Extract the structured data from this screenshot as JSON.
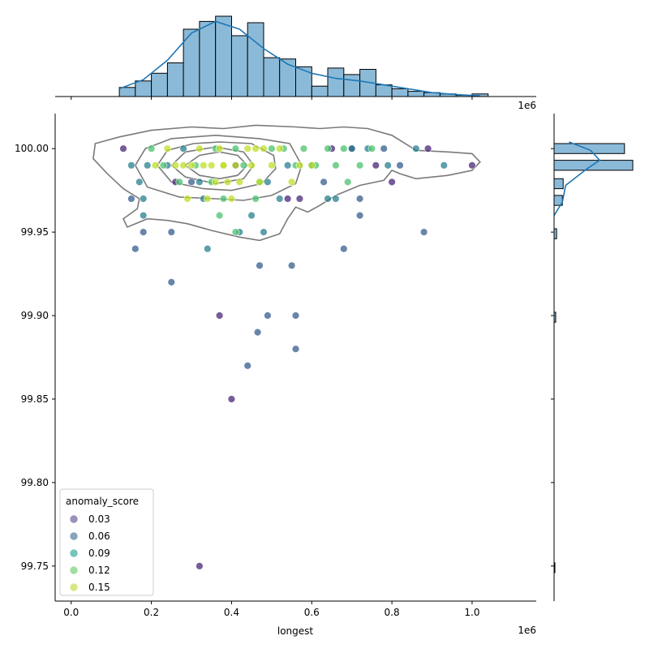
{
  "chart_data": {
    "type": "scatter",
    "subtype": "jointplot-with-kde-and-marginal-histograms",
    "xlabel": "longest",
    "ylabel": "",
    "x_offset_label": "1e6",
    "x_unit_multiplier": 1000000,
    "xlim": [
      -40000,
      1160000
    ],
    "ylim": [
      99.729,
      100.021
    ],
    "x_ticks": [
      0,
      200000,
      400000,
      600000,
      800000,
      1000000
    ],
    "x_tick_labels": [
      "0.0",
      "0.2",
      "0.4",
      "0.6",
      "0.8",
      "1.0"
    ],
    "y_ticks": [
      99.75,
      99.8,
      99.85,
      99.9,
      99.95,
      100.0
    ],
    "y_tick_labels": [
      "99.75",
      "99.80",
      "99.85",
      "99.90",
      "99.95",
      "100.00"
    ],
    "legend": {
      "title": "anomaly_score",
      "position": "lower-left",
      "entries": [
        {
          "label": "0.03",
          "color": "#7b6aa8"
        },
        {
          "label": "0.06",
          "color": "#5e86a4"
        },
        {
          "label": "0.09",
          "color": "#46b1a5"
        },
        {
          "label": "0.12",
          "color": "#7fd47f"
        },
        {
          "label": "0.15",
          "color": "#c9e05a"
        }
      ]
    },
    "marker_alpha": 0.75,
    "grid": false,
    "kde_contour_color": "#7a7a7a",
    "kde_contours": [
      [
        [
          60000,
          100.003
        ],
        [
          120000,
          100.007
        ],
        [
          200000,
          100.011
        ],
        [
          300000,
          100.013
        ],
        [
          380000,
          100.012
        ],
        [
          460000,
          100.014
        ],
        [
          560000,
          100.013
        ],
        [
          620000,
          100.012
        ],
        [
          680000,
          100.013
        ],
        [
          740000,
          100.012
        ],
        [
          800000,
          100.008
        ],
        [
          860000,
          99.999
        ],
        [
          940000,
          99.998
        ],
        [
          1000000,
          99.997
        ],
        [
          1020000,
          99.992
        ],
        [
          1000000,
          99.987
        ],
        [
          940000,
          99.984
        ],
        [
          860000,
          99.982
        ],
        [
          820000,
          99.985
        ],
        [
          800000,
          99.987
        ],
        [
          780000,
          99.981
        ],
        [
          720000,
          99.978
        ],
        [
          660000,
          99.972
        ],
        [
          620000,
          99.966
        ],
        [
          590000,
          99.962
        ],
        [
          560000,
          99.965
        ],
        [
          540000,
          99.958
        ],
        [
          520000,
          99.949
        ],
        [
          470000,
          99.945
        ],
        [
          420000,
          99.947
        ],
        [
          350000,
          99.951
        ],
        [
          290000,
          99.955
        ],
        [
          240000,
          99.957
        ],
        [
          190000,
          99.958
        ],
        [
          140000,
          99.953
        ],
        [
          130000,
          99.958
        ],
        [
          165000,
          99.964
        ],
        [
          170000,
          99.97
        ],
        [
          130000,
          99.976
        ],
        [
          90000,
          99.985
        ],
        [
          55000,
          99.994
        ],
        [
          60000,
          100.003
        ]
      ],
      [
        [
          160000,
          99.99
        ],
        [
          185000,
          100.0
        ],
        [
          250000,
          100.006
        ],
        [
          360000,
          100.008
        ],
        [
          470000,
          100.006
        ],
        [
          545000,
          100.003
        ],
        [
          575000,
          99.99
        ],
        [
          560000,
          99.979
        ],
        [
          500000,
          99.972
        ],
        [
          430000,
          99.969
        ],
        [
          360000,
          99.97
        ],
        [
          270000,
          99.971
        ],
        [
          190000,
          99.977
        ],
        [
          160000,
          99.99
        ]
      ],
      [
        [
          215000,
          99.99
        ],
        [
          240000,
          99.999
        ],
        [
          305000,
          100.003
        ],
        [
          370000,
          100.004
        ],
        [
          450000,
          100.003
        ],
        [
          505000,
          99.996
        ],
        [
          510000,
          99.988
        ],
        [
          475000,
          99.979
        ],
        [
          400000,
          99.975
        ],
        [
          330000,
          99.976
        ],
        [
          250000,
          99.98
        ],
        [
          215000,
          99.99
        ]
      ],
      [
        [
          250000,
          99.99
        ],
        [
          285000,
          99.998
        ],
        [
          360000,
          100.001
        ],
        [
          430000,
          99.998
        ],
        [
          455000,
          99.99
        ],
        [
          430000,
          99.982
        ],
        [
          360000,
          99.979
        ],
        [
          285000,
          99.983
        ],
        [
          250000,
          99.99
        ]
      ],
      [
        [
          285000,
          99.99
        ],
        [
          320000,
          99.996
        ],
        [
          370000,
          99.998
        ],
        [
          415000,
          99.996
        ],
        [
          440000,
          99.99
        ],
        [
          415000,
          99.984
        ],
        [
          370000,
          99.982
        ],
        [
          320000,
          99.984
        ],
        [
          285000,
          99.99
        ]
      ]
    ],
    "series": [
      {
        "name": "0.03",
        "color": "#482677",
        "points": [
          [
            130000,
            100.0
          ],
          [
            260000,
            99.98
          ],
          [
            410000,
            99.99
          ],
          [
            540000,
            99.97
          ],
          [
            570000,
            99.97
          ],
          [
            650000,
            100.0
          ],
          [
            700000,
            100.0
          ],
          [
            760000,
            99.99
          ],
          [
            890000,
            100.0
          ],
          [
            1000000,
            99.99
          ],
          [
            800000,
            99.98
          ],
          [
            320000,
            99.75
          ],
          [
            370000,
            99.9
          ],
          [
            400000,
            99.85
          ]
        ]
      },
      {
        "name": "0.06",
        "color": "#365c8d",
        "points": [
          [
            150000,
            99.97
          ],
          [
            180000,
            99.95
          ],
          [
            160000,
            99.94
          ],
          [
            250000,
            99.95
          ],
          [
            250000,
            99.92
          ],
          [
            300000,
            99.98
          ],
          [
            470000,
            99.93
          ],
          [
            550000,
            99.93
          ],
          [
            490000,
            99.9
          ],
          [
            560000,
            99.9
          ],
          [
            465000,
            99.89
          ],
          [
            560000,
            99.88
          ],
          [
            440000,
            99.87
          ],
          [
            680000,
            99.94
          ],
          [
            720000,
            99.96
          ],
          [
            880000,
            99.95
          ],
          [
            780000,
            100.0
          ],
          [
            820000,
            99.99
          ],
          [
            630000,
            99.98
          ],
          [
            720000,
            99.97
          ]
        ]
      },
      {
        "name": "0.09",
        "color": "#277f8e",
        "points": [
          [
            150000,
            99.99
          ],
          [
            190000,
            99.99
          ],
          [
            180000,
            99.97
          ],
          [
            180000,
            99.96
          ],
          [
            170000,
            99.98
          ],
          [
            240000,
            99.99
          ],
          [
            280000,
            100.0
          ],
          [
            320000,
            99.98
          ],
          [
            330000,
            99.97
          ],
          [
            340000,
            99.94
          ],
          [
            450000,
            99.96
          ],
          [
            520000,
            99.97
          ],
          [
            540000,
            99.99
          ],
          [
            600000,
            99.99
          ],
          [
            640000,
            99.97
          ],
          [
            660000,
            99.97
          ],
          [
            700000,
            100.0
          ],
          [
            740000,
            100.0
          ],
          [
            790000,
            99.99
          ],
          [
            860000,
            100.0
          ],
          [
            930000,
            99.99
          ],
          [
            480000,
            99.95
          ],
          [
            420000,
            99.95
          ],
          [
            490000,
            99.98
          ]
        ]
      },
      {
        "name": "0.12",
        "color": "#4ac16d",
        "points": [
          [
            200000,
            100.0
          ],
          [
            230000,
            99.99
          ],
          [
            270000,
            99.98
          ],
          [
            310000,
            99.99
          ],
          [
            360000,
            100.0
          ],
          [
            410000,
            100.0
          ],
          [
            430000,
            99.99
          ],
          [
            460000,
            99.97
          ],
          [
            470000,
            99.98
          ],
          [
            500000,
            100.0
          ],
          [
            530000,
            100.0
          ],
          [
            560000,
            99.99
          ],
          [
            580000,
            100.0
          ],
          [
            610000,
            99.99
          ],
          [
            640000,
            100.0
          ],
          [
            660000,
            99.99
          ],
          [
            680000,
            100.0
          ],
          [
            720000,
            99.99
          ],
          [
            750000,
            100.0
          ],
          [
            690000,
            99.98
          ],
          [
            410000,
            99.95
          ],
          [
            370000,
            99.96
          ],
          [
            350000,
            99.98
          ],
          [
            380000,
            99.97
          ]
        ]
      },
      {
        "name": "0.15",
        "color": "#bddf26",
        "points": [
          [
            210000,
            99.99
          ],
          [
            240000,
            100.0
          ],
          [
            260000,
            99.99
          ],
          [
            290000,
            99.97
          ],
          [
            300000,
            99.99
          ],
          [
            320000,
            100.0
          ],
          [
            350000,
            99.99
          ],
          [
            370000,
            100.0
          ],
          [
            380000,
            99.99
          ],
          [
            390000,
            99.98
          ],
          [
            400000,
            99.97
          ],
          [
            420000,
            99.98
          ],
          [
            440000,
            100.0
          ],
          [
            450000,
            99.99
          ],
          [
            470000,
            99.98
          ],
          [
            480000,
            100.0
          ],
          [
            500000,
            99.99
          ],
          [
            520000,
            100.0
          ],
          [
            550000,
            99.98
          ],
          [
            570000,
            99.99
          ],
          [
            600000,
            99.99
          ],
          [
            380000,
            99.99
          ],
          [
            330000,
            99.99
          ],
          [
            280000,
            99.99
          ],
          [
            340000,
            99.97
          ],
          [
            360000,
            99.98
          ],
          [
            410000,
            99.99
          ],
          [
            460000,
            100.0
          ]
        ]
      }
    ],
    "marginal_x_histogram": {
      "bin_edges": [
        120000,
        160000,
        200000,
        240000,
        280000,
        320000,
        360000,
        400000,
        440000,
        480000,
        520000,
        560000,
        600000,
        640000,
        680000,
        720000,
        760000,
        800000,
        840000,
        880000,
        920000,
        960000,
        1000000,
        1040000
      ],
      "counts": [
        7,
        12,
        18,
        26,
        52,
        58,
        62,
        47,
        57,
        30,
        29,
        23,
        8,
        22,
        17,
        21,
        9,
        6,
        4,
        3,
        2,
        1,
        2
      ],
      "bar_color": "#8bbad9",
      "kde_color": "#1f77b4",
      "kde": [
        [
          120000,
          6
        ],
        [
          180000,
          13
        ],
        [
          240000,
          28
        ],
        [
          300000,
          49
        ],
        [
          360000,
          58
        ],
        [
          420000,
          52
        ],
        [
          480000,
          37
        ],
        [
          540000,
          25
        ],
        [
          600000,
          18
        ],
        [
          660000,
          14
        ],
        [
          720000,
          12
        ],
        [
          780000,
          9
        ],
        [
          840000,
          6
        ],
        [
          900000,
          3
        ],
        [
          960000,
          1.5
        ],
        [
          1020000,
          0.5
        ]
      ]
    },
    "marginal_y_histogram": {
      "bin_edges": [
        99.746,
        99.752,
        99.896,
        99.902,
        99.946,
        99.952,
        99.966,
        99.972,
        99.976,
        99.982,
        99.987,
        99.993,
        99.997,
        100.003
      ],
      "counts": [
        1,
        0,
        2,
        0,
        3,
        0,
        10,
        0,
        11,
        0,
        95,
        0,
        85
      ],
      "bar_color": "#8bbad9",
      "kde_color": "#1f77b4",
      "kde": [
        [
          99.96,
          0
        ],
        [
          99.968,
          10
        ],
        [
          99.978,
          14
        ],
        [
          99.988,
          40
        ],
        [
          99.993,
          55
        ],
        [
          99.999,
          44
        ],
        [
          100.004,
          18
        ]
      ]
    }
  }
}
